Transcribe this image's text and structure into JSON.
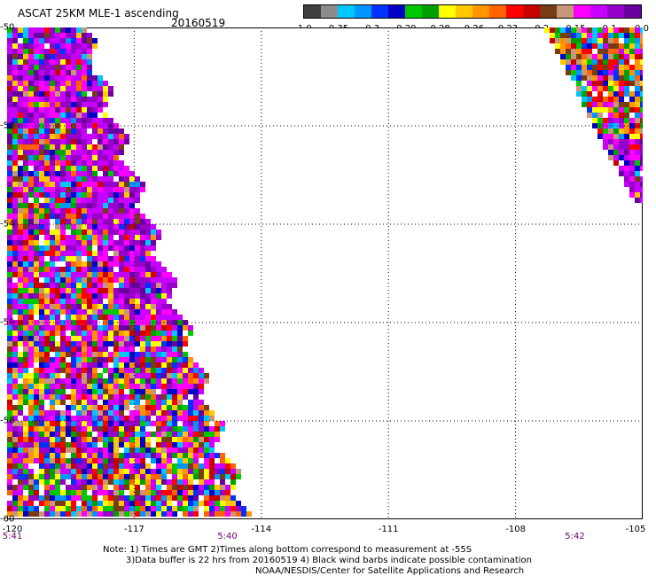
{
  "header": {
    "title": "ASCAT 25KM MLE-1 ascending",
    "date": "20160519"
  },
  "legend": {
    "colors": [
      "#404040",
      "#8c8c8c",
      "#00c8ff",
      "#0096ff",
      "#0032ff",
      "#0000c8",
      "#00c800",
      "#00a000",
      "#ffff00",
      "#ffc800",
      "#ff9600",
      "#ff6400",
      "#ff0000",
      "#c80000",
      "#783c14",
      "#c89678",
      "#ff00ff",
      "#c800ff",
      "#9600c8",
      "#6a00a0"
    ],
    "labels": [
      "-1.0",
      "-0.35",
      "-0.3",
      "-0.29",
      "-0.28",
      "-0.26",
      "-0.23",
      "-0.2",
      "-0.15",
      "-0.1",
      "0.0"
    ]
  },
  "axes": {
    "lat_labels": [
      "-50",
      "-52",
      "-54",
      "-56",
      "-58",
      "-60"
    ],
    "lon_labels": [
      "-120",
      "-117",
      "-114",
      "-111",
      "-108",
      "-105"
    ],
    "time_labels": [
      "5:41",
      "5:40",
      "5:42"
    ]
  },
  "notes": {
    "line1": "Note: 1) Times are GMT 2)Times along bottom correspond to measurement at -55S",
    "line2": "3)Data buffer is 22 hrs from 20160519 4) Black wind barbs indicate possible contamination",
    "line3": "NOAA/NESDIS/Center for Satellite Applications and Research"
  }
}
